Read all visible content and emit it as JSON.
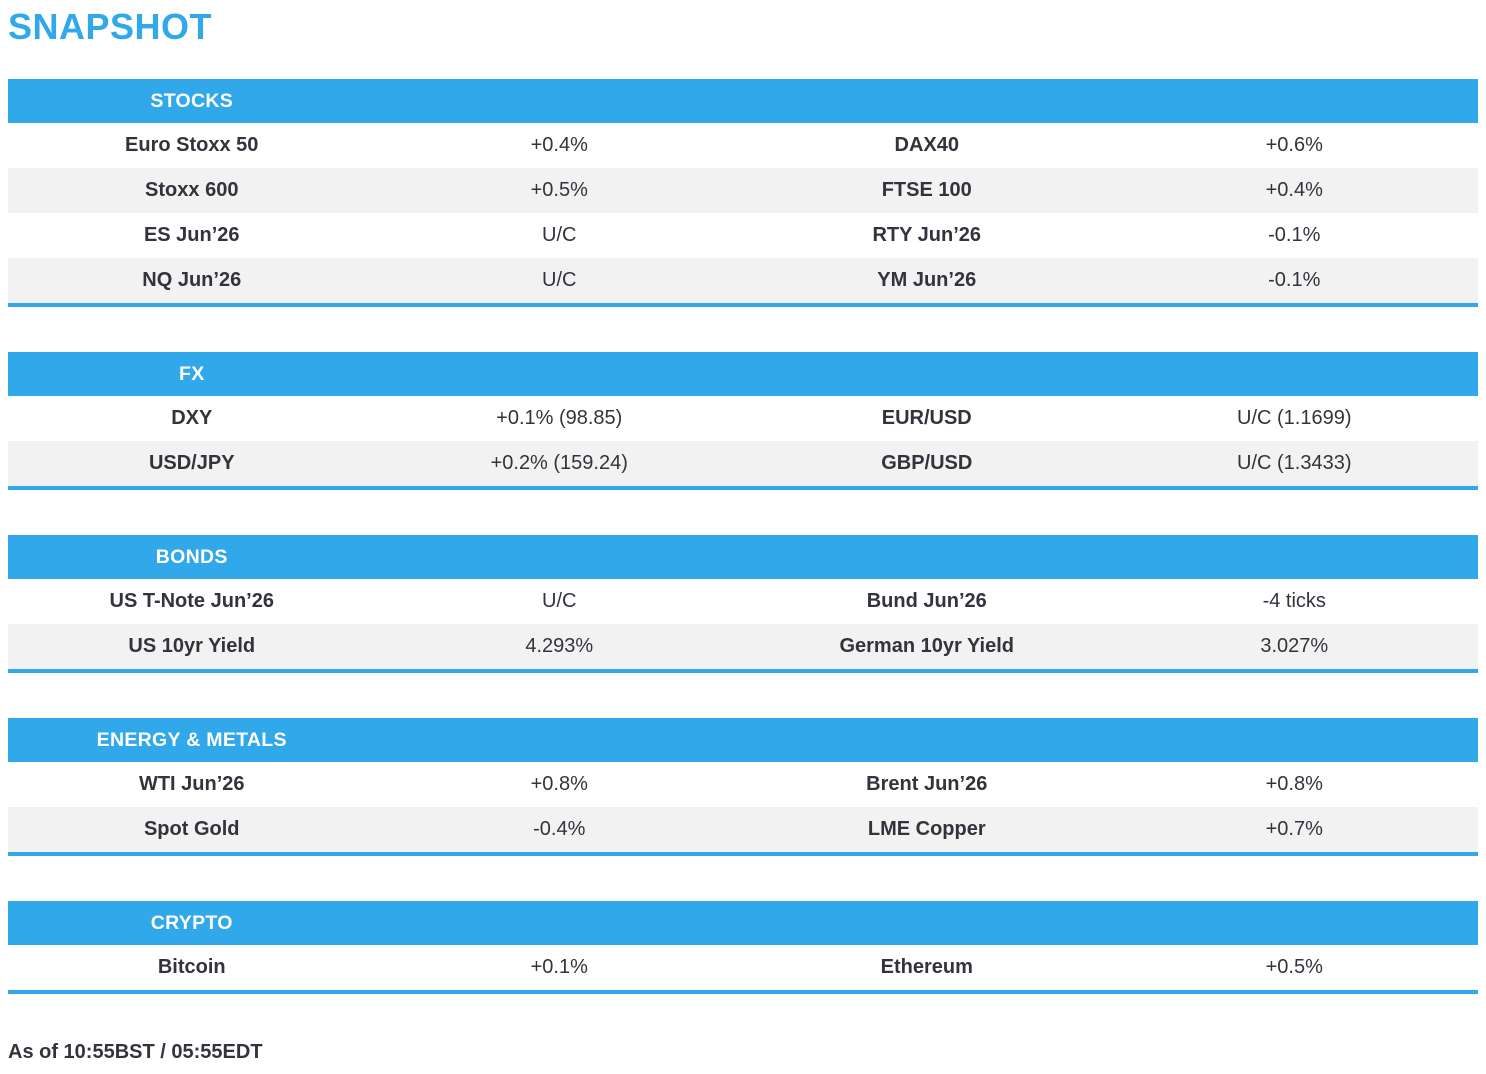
{
  "page": {
    "title": "SNAPSHOT",
    "footer": "As of 10:55BST / 05:55EDT"
  },
  "colors": {
    "accent": "#30a8ea",
    "row_alt": "#f2f2f2",
    "text": "#33333c",
    "header_text": "#ffffff"
  },
  "tables": [
    {
      "id": "stocks",
      "header": "STOCKS",
      "rows": [
        {
          "label": "Euro Stoxx 50",
          "value": "+0.4%",
          "label2": "DAX40",
          "value2": "+0.6%"
        },
        {
          "label": "Stoxx 600",
          "value": "+0.5%",
          "label2": "FTSE 100",
          "value2": "+0.4%"
        },
        {
          "label": "ES Jun’26",
          "value": "U/C",
          "label2": "RTY Jun’26",
          "value2": "-0.1%"
        },
        {
          "label": "NQ Jun’26",
          "value": "U/C",
          "label2": "YM Jun’26",
          "value2": "-0.1%"
        }
      ]
    },
    {
      "id": "fx",
      "header": "FX",
      "rows": [
        {
          "label": "DXY",
          "value": "+0.1% (98.85)",
          "label2": "EUR/USD",
          "value2": "U/C (1.1699)"
        },
        {
          "label": "USD/JPY",
          "value": "+0.2% (159.24)",
          "label2": "GBP/USD",
          "value2": "U/C (1.3433)"
        }
      ]
    },
    {
      "id": "bonds",
      "header": "BONDS",
      "rows": [
        {
          "label": "US T-Note Jun’26",
          "value": "U/C",
          "label2": "Bund Jun’26",
          "value2": "-4 ticks"
        },
        {
          "label": "US 10yr Yield",
          "value": "4.293%",
          "label2": "German 10yr Yield",
          "value2": "3.027%"
        }
      ]
    },
    {
      "id": "energy-metals",
      "header": "ENERGY & METALS",
      "rows": [
        {
          "label": "WTI Jun’26",
          "value": "+0.8%",
          "label2": "Brent Jun’26",
          "value2": "+0.8%"
        },
        {
          "label": "Spot Gold",
          "value": "-0.4%",
          "label2": "LME Copper",
          "value2": "+0.7%"
        }
      ]
    },
    {
      "id": "crypto",
      "header": "CRYPTO",
      "rows": [
        {
          "label": "Bitcoin",
          "value": "+0.1%",
          "label2": "Ethereum",
          "value2": "+0.5%"
        }
      ]
    }
  ]
}
